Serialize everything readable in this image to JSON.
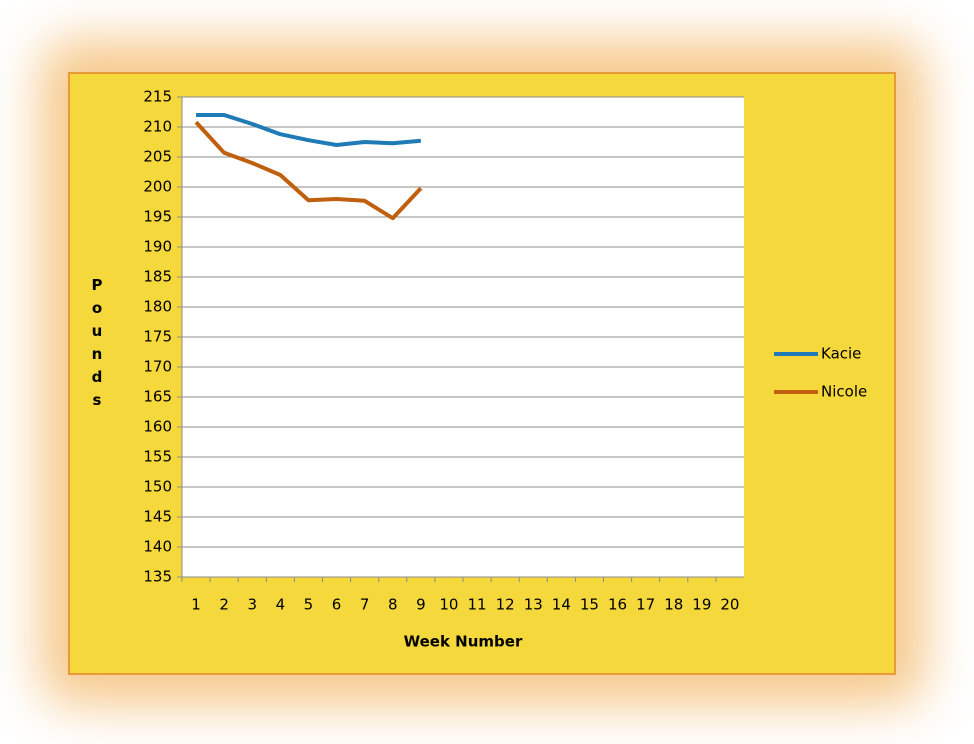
{
  "chart_data": {
    "type": "line",
    "y_label": "Pounds",
    "x_label": "Week Number",
    "categories": [
      1,
      2,
      3,
      4,
      5,
      6,
      7,
      8,
      9,
      10,
      11,
      12,
      13,
      14,
      15,
      16,
      17,
      18,
      19,
      20
    ],
    "series": [
      {
        "name": "Kacie",
        "color": "#1f7ab5",
        "values": [
          212,
          212,
          210.5,
          208.8,
          207.8,
          207,
          207.5,
          207.3,
          207.7,
          null,
          null,
          null,
          null,
          null,
          null,
          null,
          null,
          null,
          null,
          null
        ]
      },
      {
        "name": "Nicole",
        "color": "#c0600f",
        "values": [
          210.8,
          205.7,
          204,
          202,
          197.8,
          198,
          197.7,
          194.8,
          199.8,
          null,
          null,
          null,
          null,
          null,
          null,
          null,
          null,
          null,
          null,
          null
        ]
      }
    ],
    "ylim": [
      135,
      215
    ],
    "yticks": [
      135,
      140,
      145,
      150,
      155,
      160,
      165,
      170,
      175,
      180,
      185,
      190,
      195,
      200,
      205,
      210,
      215
    ],
    "grid": true,
    "legend": "right"
  }
}
